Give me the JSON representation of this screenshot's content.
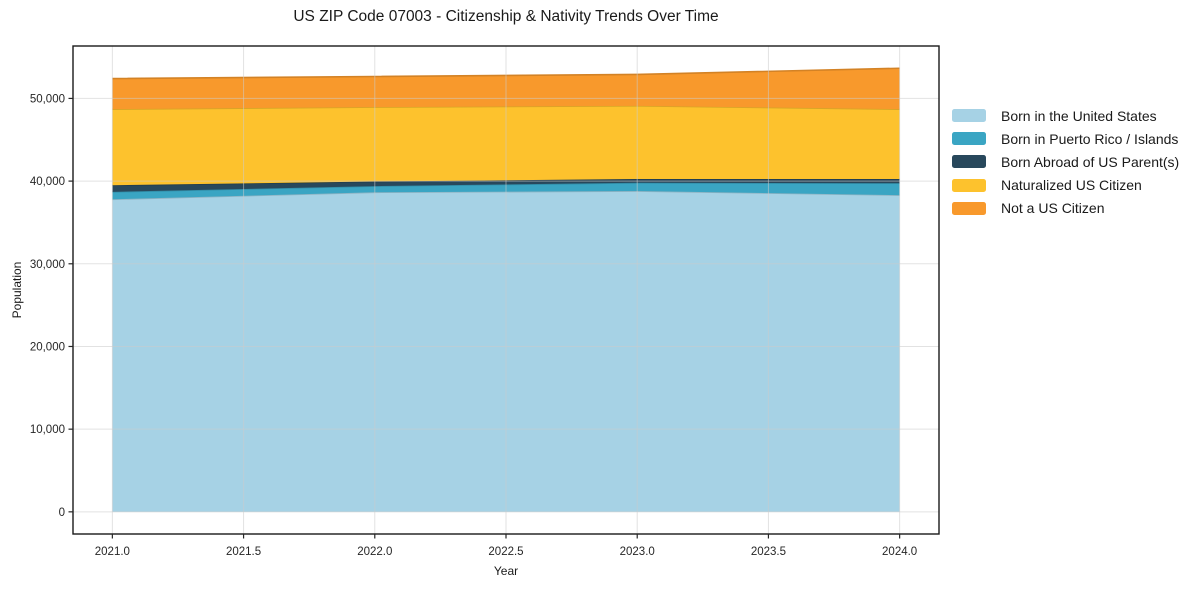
{
  "title": "US ZIP Code 07003 - Citizenship & Nativity Trends Over Time",
  "chart_data": {
    "type": "area",
    "stacked": true,
    "title": "US ZIP Code 07003 - Citizenship & Nativity Trends Over Time",
    "xlabel": "Year",
    "ylabel": "Population",
    "x": [
      2021,
      2022,
      2023,
      2024
    ],
    "series": [
      {
        "name": "Born in the United States",
        "color": "#a6d2e5",
        "values": [
          37800,
          38650,
          38800,
          38300
        ]
      },
      {
        "name": "Born in Puerto Rico / Islands",
        "color": "#3aa5c3",
        "values": [
          900,
          750,
          1000,
          1450
        ]
      },
      {
        "name": "Born Abroad of US Parent(s)",
        "color": "#28485c",
        "values": [
          800,
          550,
          450,
          500
        ]
      },
      {
        "name": "Naturalized US Citizen",
        "color": "#fdc22d",
        "values": [
          9200,
          9000,
          8850,
          8450
        ]
      },
      {
        "name": "Not a US Citizen",
        "color": "#f8992c",
        "values": [
          3700,
          3700,
          3800,
          4950
        ]
      }
    ],
    "stack_totals": [
      52400,
      52650,
      52900,
      53650
    ],
    "x_ticks": [
      2021.0,
      2021.5,
      2022.0,
      2022.5,
      2023.0,
      2023.5,
      2024.0
    ],
    "x_tick_labels": [
      "2021.0",
      "2021.5",
      "2022.0",
      "2022.5",
      "2023.0",
      "2023.5",
      "2024.0"
    ],
    "y_ticks": [
      0,
      10000,
      20000,
      30000,
      40000,
      50000
    ],
    "y_tick_labels": [
      "0",
      "10,000",
      "20,000",
      "30,000",
      "40,000",
      "50,000"
    ],
    "xlim": [
      2020.85,
      2024.15
    ],
    "ylim": [
      -2680,
      56340
    ],
    "grid": true,
    "legend_position": "right",
    "colors": {
      "grid_line": "#cccccc",
      "spine": "#1a1a1a",
      "tick_text": "#262626",
      "background": "#ffffff"
    }
  }
}
